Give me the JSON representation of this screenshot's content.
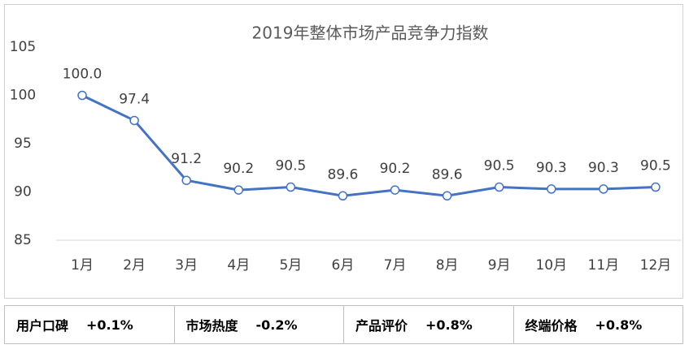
{
  "chart_data": {
    "type": "line",
    "title": "2019年整体市场产品竞争力指数",
    "categories": [
      "1月",
      "2月",
      "3月",
      "4月",
      "5月",
      "6月",
      "7月",
      "8月",
      "9月",
      "10月",
      "11月",
      "12月"
    ],
    "values": [
      100.0,
      97.4,
      91.2,
      90.2,
      90.5,
      89.6,
      90.2,
      89.6,
      90.5,
      90.3,
      90.3,
      90.5
    ],
    "value_labels": [
      "100.0",
      "97.4",
      "91.2",
      "90.2",
      "90.5",
      "89.6",
      "90.2",
      "89.6",
      "90.5",
      "90.3",
      "90.3",
      "90.5"
    ],
    "color": "#4472c4",
    "ylim": [
      85,
      105
    ],
    "yticks": [
      85,
      90,
      95,
      100,
      105
    ],
    "grid": false
  },
  "summary": [
    {
      "label": "用户口碑",
      "value": "+0.1%"
    },
    {
      "label": "市场热度",
      "value": "-0.2%"
    },
    {
      "label": "产品评价",
      "value": "+0.8%"
    },
    {
      "label": "终端价格",
      "value": "+0.8%"
    }
  ]
}
